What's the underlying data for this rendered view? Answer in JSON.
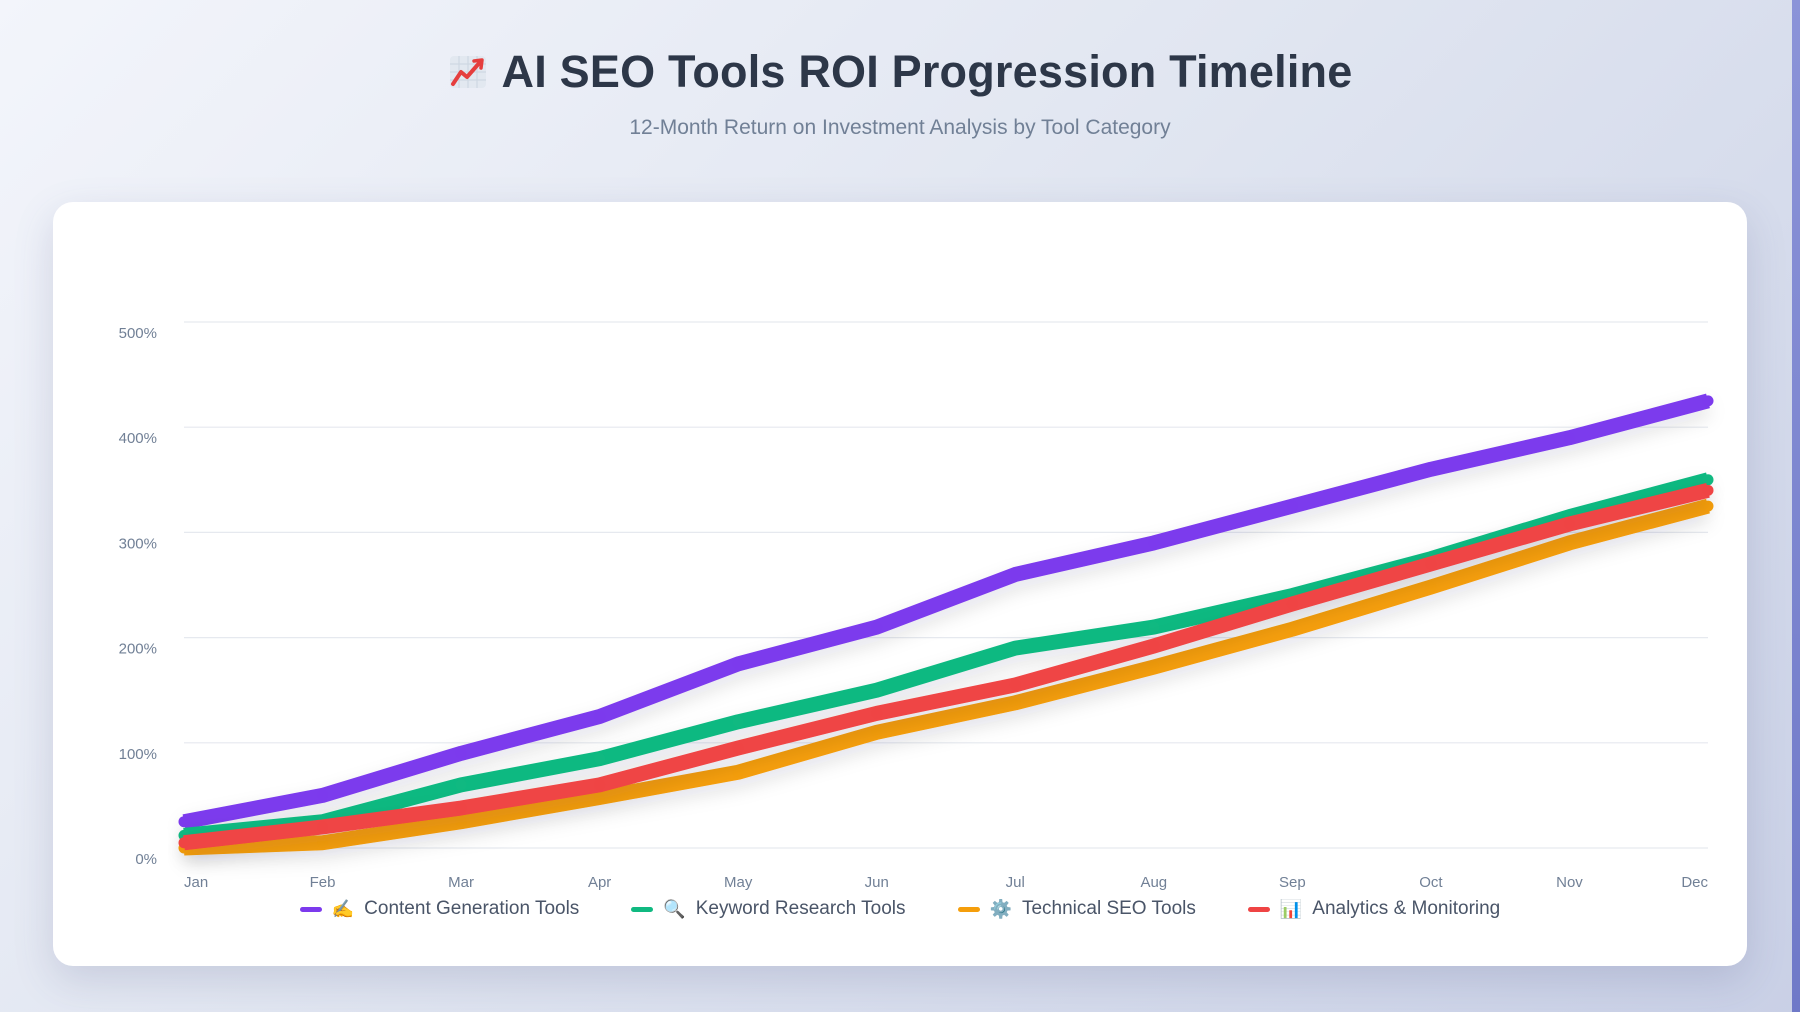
{
  "header": {
    "icon": "chart-increasing-icon",
    "title": "AI SEO Tools ROI Progression Timeline",
    "subtitle": "12-Month Return on Investment Analysis by Tool Category"
  },
  "chart_data": {
    "type": "line",
    "title": "AI SEO Tools ROI Progression Timeline",
    "subtitle": "12-Month Return on Investment Analysis by Tool Category",
    "categories": [
      "Jan",
      "Feb",
      "Mar",
      "Apr",
      "May",
      "Jun",
      "Jul",
      "Aug",
      "Sep",
      "Oct",
      "Nov",
      "Dec"
    ],
    "ylim": [
      0,
      500
    ],
    "y_ticks": [
      0,
      100,
      200,
      300,
      400,
      500
    ],
    "y_tick_format": "percent",
    "y_tick_labels": [
      "0%",
      "100%",
      "200%",
      "300%",
      "400%",
      "500%"
    ],
    "grid": true,
    "legend_position": "bottom",
    "series": [
      {
        "name": "Content Generation Tools",
        "legend_icon": "✍️",
        "color": "#7c3aed",
        "values": [
          25,
          50,
          90,
          125,
          175,
          210,
          260,
          290,
          325,
          360,
          390,
          425
        ]
      },
      {
        "name": "Keyword Research Tools",
        "legend_icon": "🔍",
        "color": "#10b981",
        "values": [
          12,
          25,
          60,
          85,
          120,
          150,
          190,
          210,
          240,
          275,
          315,
          350
        ]
      },
      {
        "name": "Technical SEO Tools",
        "legend_icon": "⚙️",
        "color": "#f59e0b",
        "values": [
          0,
          5,
          25,
          48,
          72,
          110,
          138,
          172,
          208,
          248,
          290,
          325
        ]
      },
      {
        "name": "Analytics & Monitoring",
        "legend_icon": "📊",
        "color": "#ef4444",
        "values": [
          5,
          20,
          38,
          60,
          95,
          128,
          155,
          192,
          232,
          270,
          308,
          340
        ]
      }
    ]
  }
}
